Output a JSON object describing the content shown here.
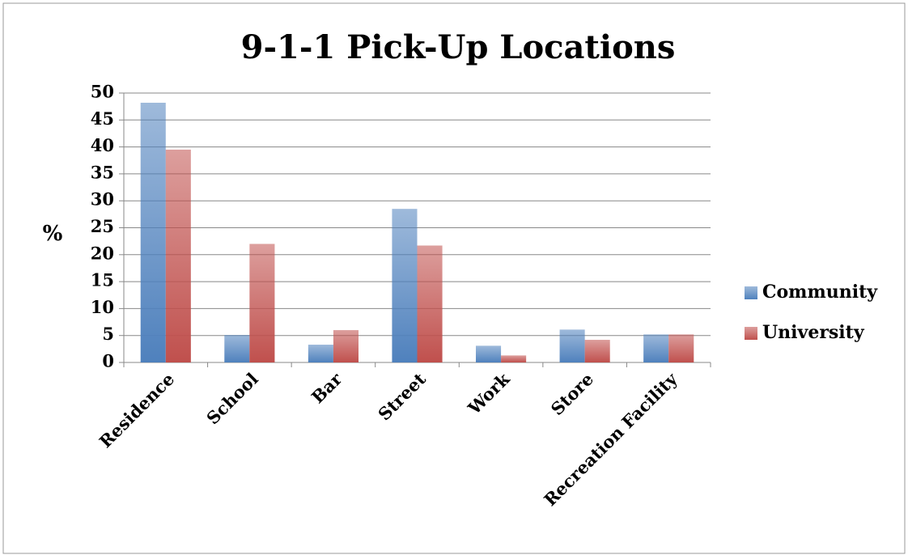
{
  "chart_data": {
    "type": "bar",
    "title": "9-1-1 Pick-Up Locations",
    "y_label": "%",
    "categories": [
      "Residence",
      "School",
      "Bar",
      "Street",
      "Work",
      "Store",
      "Recreation Facility"
    ],
    "series": [
      {
        "name": "Community",
        "color": "#4f81bd",
        "values": [
          48.2,
          5.1,
          3.3,
          28.5,
          3.1,
          6.1,
          5.2
        ]
      },
      {
        "name": "University",
        "color": "#c0504d",
        "values": [
          39.5,
          22,
          6,
          21.7,
          1.3,
          4.2,
          5.2
        ]
      }
    ],
    "ylim": [
      0,
      50
    ],
    "yticks": [
      0,
      5,
      10,
      15,
      20,
      25,
      30,
      35,
      40,
      45,
      50
    ],
    "grid": true,
    "legend": "right"
  }
}
